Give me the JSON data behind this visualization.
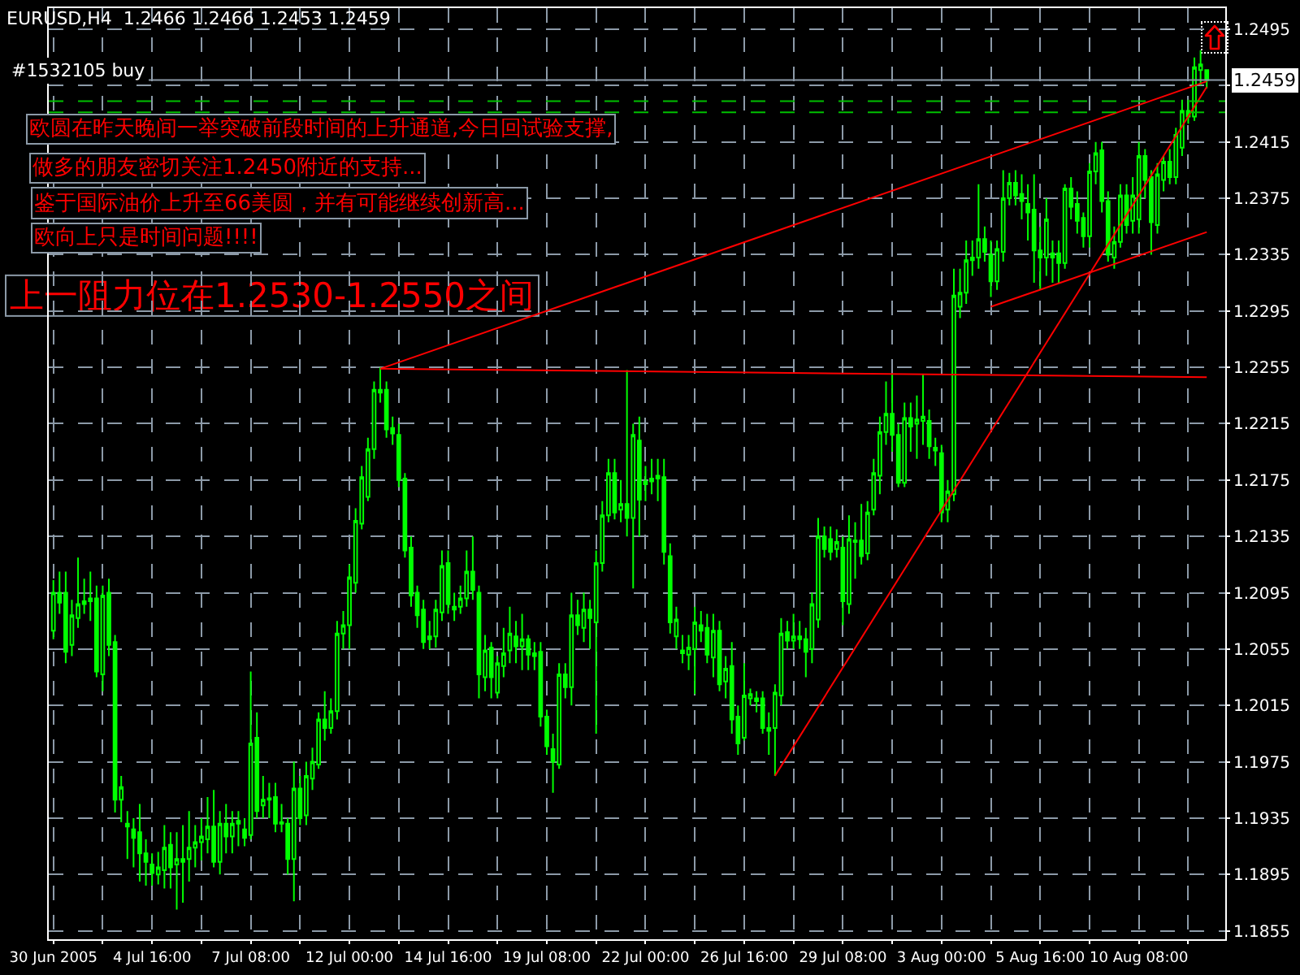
{
  "chart_data": {
    "type": "candlestick",
    "title": "EURUSD,H4  1.2466 1.2466 1.2453 1.2459",
    "color": "#00ff00",
    "categories": [
      "30 Jun 2005",
      null,
      null,
      null,
      null,
      null,
      null,
      null,
      null,
      null,
      null,
      null,
      null,
      null,
      null,
      null,
      "4 Jul 16:00",
      null,
      null,
      null,
      null,
      null,
      null,
      null,
      null,
      null,
      null,
      null,
      null,
      null,
      null,
      null,
      "7 Jul 08:00",
      null,
      null,
      null,
      null,
      null,
      null,
      null,
      null,
      null,
      null,
      null,
      null,
      null,
      null,
      null,
      "12 Jul 00:00",
      null,
      null,
      null,
      null,
      null,
      null,
      null,
      null,
      null,
      null,
      null,
      null,
      null,
      null,
      null,
      "14 Jul 16:00",
      null,
      null,
      null,
      null,
      null,
      null,
      null,
      null,
      null,
      null,
      null,
      null,
      null,
      null,
      null,
      "19 Jul 08:00",
      null,
      null,
      null,
      null,
      null,
      null,
      null,
      null,
      null,
      null,
      null,
      null,
      null,
      null,
      null,
      "22 Jul 00:00",
      null,
      null,
      null,
      null,
      null,
      null,
      null,
      null,
      null,
      null,
      null,
      null,
      null,
      null,
      null,
      "26 Jul 16:00",
      null,
      null,
      null,
      null,
      null,
      null,
      null,
      null,
      null,
      null,
      null,
      null,
      null,
      null,
      null,
      "29 Jul 08:00",
      null,
      null,
      null,
      null,
      null,
      null,
      null,
      null,
      null,
      null,
      null,
      null,
      null,
      null,
      null,
      "3 Aug 00:00",
      null,
      null,
      null,
      null,
      null,
      null,
      null,
      null,
      null,
      null,
      null,
      null,
      null,
      null,
      null,
      "5 Aug 16:00",
      null,
      null,
      null,
      null,
      null,
      null,
      null,
      null,
      null,
      null,
      null,
      null,
      null,
      null,
      null,
      "10 Aug 08:00",
      null,
      null,
      null,
      null,
      null,
      null,
      null,
      null,
      null,
      null,
      null
    ],
    "ohlc": [
      [
        1.2068,
        1.2104,
        1.2062,
        1.2095
      ],
      [
        1.2095,
        1.211,
        1.208,
        1.2088
      ],
      [
        1.2095,
        1.211,
        1.2045,
        1.2053
      ],
      [
        1.2058,
        1.209,
        1.205,
        1.2079
      ],
      [
        1.2077,
        1.212,
        1.207,
        1.2087
      ],
      [
        1.2087,
        1.2105,
        1.208,
        1.2089
      ],
      [
        1.2089,
        1.211,
        1.2075,
        1.2091
      ],
      [
        1.2091,
        1.21,
        1.2035,
        1.2039
      ],
      [
        1.2037,
        1.21,
        1.2025,
        1.2093
      ],
      [
        1.2095,
        1.2105,
        1.205,
        1.2058
      ],
      [
        1.206,
        1.2065,
        1.1939,
        1.1948
      ],
      [
        1.1948,
        1.1965,
        1.1932,
        1.1957
      ],
      [
        1.1931,
        1.194,
        1.1906,
        1.1929
      ],
      [
        1.1927,
        1.1935,
        1.19,
        1.1921
      ],
      [
        1.1925,
        1.1945,
        1.189,
        1.191
      ],
      [
        1.191,
        1.192,
        1.1887,
        1.1904
      ],
      [
        1.1902,
        1.191,
        1.1887,
        1.1896
      ],
      [
        1.1895,
        1.1911,
        1.1888,
        1.19
      ],
      [
        1.1898,
        1.193,
        1.1885,
        1.1914
      ],
      [
        1.1916,
        1.1925,
        1.1885,
        1.19
      ],
      [
        1.1902,
        1.1925,
        1.187,
        1.1906
      ],
      [
        1.1906,
        1.193,
        1.1875,
        1.1904
      ],
      [
        1.1906,
        1.194,
        1.189,
        1.1914
      ],
      [
        1.1914,
        1.193,
        1.19,
        1.1918
      ],
      [
        1.1918,
        1.1935,
        1.1905,
        1.1922
      ],
      [
        1.192,
        1.195,
        1.191,
        1.1929
      ],
      [
        1.1929,
        1.1955,
        1.19,
        1.1904
      ],
      [
        1.1904,
        1.194,
        1.1895,
        1.1931
      ],
      [
        1.1931,
        1.1945,
        1.191,
        1.1922
      ],
      [
        1.1922,
        1.194,
        1.191,
        1.1931
      ],
      [
        1.1931,
        1.194,
        1.1915,
        1.1933
      ],
      [
        1.1927,
        1.1935,
        1.1915,
        1.1921
      ],
      [
        1.1923,
        1.2039,
        1.192,
        1.1988
      ],
      [
        1.1992,
        1.201,
        1.1935,
        1.194
      ],
      [
        1.1944,
        1.1965,
        1.1935,
        1.1948
      ],
      [
        1.1948,
        1.196,
        1.1935,
        1.1949
      ],
      [
        1.195,
        1.196,
        1.1925,
        1.1931
      ],
      [
        1.1931,
        1.1945,
        1.1925,
        1.1932
      ],
      [
        1.1931,
        1.1935,
        1.1895,
        1.1906
      ],
      [
        1.1906,
        1.1975,
        1.1876,
        1.1956
      ],
      [
        1.1956,
        1.1965,
        1.193,
        1.1935
      ],
      [
        1.1937,
        1.1975,
        1.193,
        1.1965
      ],
      [
        1.1963,
        1.1985,
        1.1955,
        1.1975
      ],
      [
        1.1973,
        1.201,
        1.197,
        1.2005
      ],
      [
        1.2005,
        1.2025,
        1.199,
        1.1999
      ],
      [
        1.1999,
        1.202,
        1.1995,
        1.2011
      ],
      [
        1.2011,
        1.2075,
        1.2005,
        1.2066
      ],
      [
        1.2066,
        1.2082,
        1.2055,
        1.2072
      ],
      [
        1.2072,
        1.2115,
        1.2055,
        1.2106
      ],
      [
        1.2102,
        1.2155,
        1.2095,
        1.2146
      ],
      [
        1.2144,
        1.2185,
        1.214,
        1.2177
      ],
      [
        1.2163,
        1.2205,
        1.216,
        1.2197
      ],
      [
        1.2197,
        1.2245,
        1.219,
        1.2239
      ],
      [
        1.2239,
        1.2255,
        1.223,
        1.2237
      ],
      [
        1.2239,
        1.2245,
        1.2205,
        1.2211
      ],
      [
        1.2212,
        1.222,
        1.22,
        1.2208
      ],
      [
        1.2207,
        1.2215,
        1.217,
        1.2175
      ],
      [
        1.2176,
        1.218,
        1.212,
        1.2125
      ],
      [
        1.2127,
        1.2135,
        1.2085,
        1.2093
      ],
      [
        1.2095,
        1.21,
        1.207,
        1.2079
      ],
      [
        1.2083,
        1.209,
        1.2055,
        1.206
      ],
      [
        1.2064,
        1.2075,
        1.2055,
        1.2062
      ],
      [
        1.2064,
        1.209,
        1.2056,
        1.2083
      ],
      [
        1.2081,
        1.2125,
        1.2075,
        1.2114
      ],
      [
        1.2116,
        1.2125,
        1.208,
        1.2087
      ],
      [
        1.2085,
        1.2095,
        1.2075,
        1.2083
      ],
      [
        1.2085,
        1.21,
        1.208,
        1.2091
      ],
      [
        1.2091,
        1.2125,
        1.2085,
        1.211
      ],
      [
        1.211,
        1.2135,
        1.209,
        1.2097
      ],
      [
        1.2095,
        1.21,
        1.202,
        1.2037
      ],
      [
        1.2035,
        1.2065,
        1.2025,
        1.2054
      ],
      [
        1.2056,
        1.206,
        1.202,
        1.2035
      ],
      [
        1.2024,
        1.205,
        1.202,
        1.2045
      ],
      [
        1.2043,
        1.207,
        1.2035,
        1.2052
      ],
      [
        1.2054,
        1.2085,
        1.2045,
        1.2066
      ],
      [
        1.2064,
        1.2075,
        1.2045,
        1.2057
      ],
      [
        1.2057,
        1.208,
        1.204,
        1.2062
      ],
      [
        1.2062,
        1.2065,
        1.204,
        1.2051
      ],
      [
        1.2052,
        1.206,
        1.204,
        1.205
      ],
      [
        1.2053,
        1.206,
        1.2,
        1.2007
      ],
      [
        1.2007,
        1.2012,
        1.198,
        1.1986
      ],
      [
        1.1984,
        1.1995,
        1.1953,
        1.1975
      ],
      [
        1.1973,
        1.2045,
        1.197,
        1.2037
      ],
      [
        1.2037,
        1.2045,
        1.202,
        1.2028
      ],
      [
        1.2028,
        1.2095,
        1.2015,
        1.2079
      ],
      [
        1.2079,
        1.209,
        1.2065,
        1.2072
      ],
      [
        1.207,
        1.2095,
        1.206,
        1.2083
      ],
      [
        1.2083,
        1.209,
        1.2055,
        1.2077
      ],
      [
        1.2074,
        1.2125,
        1.1995,
        1.2116
      ],
      [
        1.2116,
        1.216,
        1.211,
        1.215
      ],
      [
        1.215,
        1.219,
        1.2145,
        1.218
      ],
      [
        1.218,
        1.219,
        1.2147,
        1.2152
      ],
      [
        1.2154,
        1.2175,
        1.2145,
        1.2158
      ],
      [
        1.2158,
        1.2253,
        1.2135,
        1.2148
      ],
      [
        1.2148,
        1.2215,
        1.2098,
        1.2207
      ],
      [
        1.2203,
        1.222,
        1.2135,
        1.2161
      ],
      [
        1.2172,
        1.2185,
        1.216,
        1.2174
      ],
      [
        1.2174,
        1.219,
        1.2165,
        1.2176
      ],
      [
        1.2176,
        1.219,
        1.216,
        1.2178
      ],
      [
        1.2177,
        1.219,
        1.2115,
        1.2124
      ],
      [
        1.2121,
        1.213,
        1.2066,
        1.2074
      ],
      [
        1.2064,
        1.2085,
        1.2055,
        1.2076
      ],
      [
        1.2052,
        1.2065,
        1.2045,
        1.2054
      ],
      [
        1.2051,
        1.2065,
        1.204,
        1.2056
      ],
      [
        1.2055,
        1.2085,
        1.2023,
        1.2074
      ],
      [
        1.2072,
        1.2082,
        1.206,
        1.2068
      ],
      [
        1.207,
        1.208,
        1.2045,
        1.2051
      ],
      [
        1.2049,
        1.208,
        1.2035,
        1.2068
      ],
      [
        1.2068,
        1.2075,
        1.2025,
        1.203
      ],
      [
        1.2032,
        1.205,
        1.202,
        1.2041
      ],
      [
        1.2043,
        1.206,
        1.1995,
        1.2005
      ],
      [
        1.2007,
        1.2015,
        1.198,
        1.1988
      ],
      [
        1.1992,
        1.2045,
        1.199,
        1.2022
      ],
      [
        1.202,
        1.2027,
        1.2015,
        1.2023
      ],
      [
        1.202,
        1.2025,
        1.201,
        1.2018
      ],
      [
        1.202,
        1.2025,
        1.1995,
        1.1999
      ],
      [
        1.1999,
        1.201,
        1.198,
        1.1997
      ],
      [
        1.1999,
        1.203,
        1.1965,
        1.2024
      ],
      [
        1.2022,
        1.2077,
        1.2015,
        1.2066
      ],
      [
        1.2067,
        1.2075,
        1.2055,
        1.2061
      ],
      [
        1.2061,
        1.208,
        1.2055,
        1.2064
      ],
      [
        1.2064,
        1.2075,
        1.2055,
        1.2062
      ],
      [
        1.2062,
        1.207,
        1.2035,
        1.2053
      ],
      [
        1.2055,
        1.2095,
        1.2045,
        1.2087
      ],
      [
        1.2076,
        1.2148,
        1.207,
        1.2135
      ],
      [
        1.2135,
        1.2142,
        1.212,
        1.2126
      ],
      [
        1.2133,
        1.2142,
        1.2118,
        1.2124
      ],
      [
        1.2126,
        1.214,
        1.212,
        1.2131
      ],
      [
        1.2127,
        1.2135,
        1.2072,
        1.2089
      ],
      [
        1.2087,
        1.215,
        1.208,
        1.2133
      ],
      [
        1.2132,
        1.2145,
        1.2105,
        1.2131
      ],
      [
        1.2132,
        1.2158,
        1.2115,
        1.2121
      ],
      [
        1.2123,
        1.216,
        1.2118,
        1.2152
      ],
      [
        1.2154,
        1.219,
        1.215,
        1.218
      ],
      [
        1.2178,
        1.222,
        1.2165,
        1.2209
      ],
      [
        1.2209,
        1.2245,
        1.22,
        1.2222
      ],
      [
        1.2222,
        1.225,
        1.2195,
        1.2207
      ],
      [
        1.2207,
        1.2215,
        1.217,
        1.2173
      ],
      [
        1.2173,
        1.223,
        1.217,
        1.2219
      ],
      [
        1.2219,
        1.223,
        1.2195,
        1.2213
      ],
      [
        1.2215,
        1.2235,
        1.219,
        1.2218
      ],
      [
        1.2217,
        1.225,
        1.22,
        1.222
      ],
      [
        1.2217,
        1.2225,
        1.219,
        1.2199
      ],
      [
        1.2198,
        1.2205,
        1.2185,
        1.2196
      ],
      [
        1.2194,
        1.22,
        1.2145,
        1.2152
      ],
      [
        1.2154,
        1.2175,
        1.2145,
        1.2167
      ],
      [
        1.2165,
        1.2325,
        1.216,
        1.2306
      ],
      [
        1.2298,
        1.2325,
        1.229,
        1.2308
      ],
      [
        1.2308,
        1.2345,
        1.23,
        1.2331
      ],
      [
        1.2331,
        1.2345,
        1.232,
        1.2333
      ],
      [
        1.2333,
        1.2385,
        1.2325,
        1.2346
      ],
      [
        1.2346,
        1.2355,
        1.233,
        1.2337
      ],
      [
        1.2335,
        1.2345,
        1.2305,
        1.2316
      ],
      [
        1.2316,
        1.2345,
        1.231,
        1.2339
      ],
      [
        1.2337,
        1.2395,
        1.233,
        1.2375
      ],
      [
        1.2375,
        1.2393,
        1.237,
        1.2386
      ],
      [
        1.2386,
        1.2395,
        1.237,
        1.2377
      ],
      [
        1.2378,
        1.2392,
        1.236,
        1.2373
      ],
      [
        1.2371,
        1.2385,
        1.2345,
        1.2365
      ],
      [
        1.2367,
        1.2392,
        1.2315,
        1.2338
      ],
      [
        1.2338,
        1.2355,
        1.231,
        1.2333
      ],
      [
        1.2333,
        1.2375,
        1.232,
        1.236
      ],
      [
        1.2336,
        1.2345,
        1.2315,
        1.2333
      ],
      [
        1.2336,
        1.2345,
        1.2315,
        1.2329
      ],
      [
        1.2329,
        1.2385,
        1.2325,
        1.2382
      ],
      [
        1.2382,
        1.239,
        1.236,
        1.2369
      ],
      [
        1.2371,
        1.238,
        1.235,
        1.2359
      ],
      [
        1.2361,
        1.2365,
        1.234,
        1.2348
      ],
      [
        1.2348,
        1.24,
        1.234,
        1.2394
      ],
      [
        1.2394,
        1.2415,
        1.2385,
        1.2407
      ],
      [
        1.2409,
        1.2415,
        1.2365,
        1.2373
      ],
      [
        1.2373,
        1.238,
        1.233,
        1.2335
      ],
      [
        1.2333,
        1.2355,
        1.2325,
        1.2344
      ],
      [
        1.2344,
        1.2385,
        1.234,
        1.2377
      ],
      [
        1.2377,
        1.2385,
        1.235,
        1.2356
      ],
      [
        1.2359,
        1.239,
        1.235,
        1.2377
      ],
      [
        1.236,
        1.2415,
        1.235,
        1.2405
      ],
      [
        1.2405,
        1.241,
        1.2375,
        1.2388
      ],
      [
        1.239,
        1.2395,
        1.2335,
        1.2358
      ],
      [
        1.2356,
        1.24,
        1.235,
        1.2392
      ],
      [
        1.2388,
        1.2405,
        1.238,
        1.2401
      ],
      [
        1.2401,
        1.241,
        1.2385,
        1.239
      ],
      [
        1.239,
        1.2425,
        1.2385,
        1.242
      ],
      [
        1.2411,
        1.2445,
        1.2405,
        1.2437
      ],
      [
        1.2437,
        1.2445,
        1.2428,
        1.2433
      ],
      [
        1.2433,
        1.2475,
        1.243,
        1.2468
      ],
      [
        1.2466,
        1.248,
        1.2455,
        1.247
      ],
      [
        1.2466,
        1.2466,
        1.2453,
        1.2459
      ]
    ],
    "series": [
      {
        "type": "line",
        "color": "#ff0000",
        "values": [
          null,
          null,
          null,
          null,
          null,
          null,
          null,
          null,
          null,
          null,
          null,
          null,
          null,
          null,
          null,
          null,
          null,
          null,
          null,
          null,
          null,
          null,
          null,
          null,
          null,
          null,
          null,
          null,
          null,
          null,
          null,
          null,
          null,
          null,
          null,
          null,
          null,
          null,
          null,
          null,
          null,
          null,
          null,
          null,
          null,
          null,
          null,
          null,
          null,
          null,
          null,
          null,
          null,
          1.2254,
          null,
          null,
          null,
          null,
          null,
          null,
          null,
          null,
          null,
          null,
          null,
          null,
          null,
          null,
          null,
          null,
          null,
          null,
          null,
          null,
          null,
          null,
          null,
          null,
          null,
          null,
          null,
          null,
          null,
          null,
          null,
          null,
          null,
          null,
          null,
          null,
          null,
          null,
          null,
          null,
          null,
          null,
          null,
          null,
          null,
          null,
          null,
          null,
          null,
          null,
          null,
          null,
          null,
          null,
          null,
          null,
          null,
          null,
          null,
          null,
          null,
          null,
          null,
          null,
          null,
          null,
          null,
          null,
          null,
          null,
          null,
          null,
          null,
          null,
          null,
          null,
          null,
          null,
          null,
          null,
          null,
          null,
          null,
          null,
          null,
          null,
          null,
          null,
          null,
          null,
          null,
          null,
          null,
          null,
          null,
          null,
          null,
          null,
          null,
          null,
          null,
          null,
          null,
          null,
          null,
          null,
          null,
          null,
          null,
          null,
          null,
          null,
          null,
          null,
          null,
          null,
          null,
          null,
          null,
          null,
          null,
          null,
          null,
          null,
          null,
          null,
          null,
          null,
          null,
          null,
          null,
          null,
          null,
          1.2458
        ]
      },
      {
        "type": "line",
        "color": "#ff0000",
        "values": [
          null,
          null,
          null,
          null,
          null,
          null,
          null,
          null,
          null,
          null,
          null,
          null,
          null,
          null,
          null,
          null,
          null,
          null,
          null,
          null,
          null,
          null,
          null,
          null,
          null,
          null,
          null,
          null,
          null,
          null,
          null,
          null,
          null,
          null,
          null,
          null,
          null,
          null,
          null,
          null,
          null,
          null,
          null,
          null,
          null,
          null,
          null,
          null,
          null,
          null,
          null,
          null,
          null,
          null,
          null,
          null,
          null,
          null,
          null,
          null,
          null,
          null,
          null,
          null,
          null,
          null,
          null,
          null,
          null,
          null,
          null,
          null,
          null,
          null,
          null,
          null,
          null,
          null,
          null,
          null,
          null,
          null,
          null,
          null,
          null,
          null,
          null,
          null,
          null,
          null,
          null,
          null,
          null,
          null,
          null,
          null,
          null,
          null,
          null,
          null,
          null,
          null,
          null,
          null,
          null,
          null,
          null,
          null,
          null,
          null,
          null,
          null,
          null,
          null,
          null,
          null,
          null,
          null,
          null,
          null,
          null,
          null,
          null,
          null,
          null,
          null,
          null,
          null,
          null,
          null,
          null,
          null,
          null,
          null,
          null,
          null,
          null,
          null,
          null,
          null,
          null,
          null,
          null,
          null,
          null,
          null,
          null,
          null,
          null,
          null,
          null,
          null,
          1.2298,
          null,
          null,
          null,
          null,
          null,
          null,
          null,
          null,
          null,
          null,
          null,
          null,
          null,
          null,
          null,
          null,
          null,
          null,
          null,
          null,
          null,
          null,
          null,
          null,
          null,
          null,
          null,
          null,
          null,
          null,
          null,
          null,
          null,
          null,
          1.2351
        ]
      },
      {
        "type": "line",
        "color": "#ff0000",
        "values": [
          null,
          null,
          null,
          null,
          null,
          null,
          null,
          null,
          null,
          null,
          null,
          null,
          null,
          null,
          null,
          null,
          null,
          null,
          null,
          null,
          null,
          null,
          null,
          null,
          null,
          null,
          null,
          null,
          null,
          null,
          null,
          null,
          null,
          null,
          null,
          null,
          null,
          null,
          null,
          null,
          null,
          null,
          null,
          null,
          null,
          null,
          null,
          null,
          null,
          null,
          null,
          null,
          null,
          null,
          null,
          null,
          null,
          null,
          null,
          null,
          null,
          null,
          null,
          null,
          null,
          null,
          null,
          null,
          null,
          null,
          null,
          null,
          null,
          null,
          null,
          null,
          null,
          null,
          null,
          null,
          null,
          null,
          null,
          null,
          null,
          null,
          null,
          null,
          null,
          null,
          null,
          null,
          null,
          null,
          null,
          null,
          null,
          null,
          null,
          null,
          null,
          null,
          null,
          null,
          null,
          null,
          null,
          null,
          null,
          null,
          null,
          null,
          null,
          null,
          null,
          null,
          null,
          1.1965,
          null,
          null,
          null,
          null,
          null,
          null,
          null,
          null,
          null,
          null,
          null,
          null,
          null,
          null,
          null,
          null,
          null,
          null,
          null,
          null,
          null,
          null,
          null,
          null,
          null,
          null,
          null,
          null,
          null,
          null,
          null,
          null,
          null,
          null,
          null,
          null,
          null,
          null,
          null,
          null,
          null,
          null,
          null,
          null,
          null,
          null,
          null,
          null,
          null,
          null,
          null,
          null,
          null,
          null,
          null,
          null,
          null,
          null,
          null,
          null,
          null,
          null,
          null,
          null,
          null,
          null,
          null,
          null,
          null,
          1.2454
        ]
      },
      {
        "type": "line",
        "color": "#ff0000",
        "values": [
          null,
          null,
          null,
          null,
          null,
          null,
          null,
          null,
          null,
          null,
          null,
          null,
          null,
          null,
          null,
          null,
          null,
          null,
          null,
          null,
          null,
          null,
          null,
          null,
          null,
          null,
          null,
          null,
          null,
          null,
          null,
          null,
          null,
          null,
          null,
          null,
          null,
          null,
          null,
          null,
          null,
          null,
          null,
          null,
          null,
          null,
          null,
          null,
          null,
          null,
          null,
          null,
          null,
          1.2254,
          null,
          null,
          null,
          null,
          null,
          null,
          null,
          null,
          null,
          null,
          null,
          null,
          null,
          null,
          null,
          null,
          null,
          null,
          null,
          null,
          null,
          null,
          null,
          null,
          null,
          null,
          null,
          null,
          null,
          null,
          null,
          null,
          null,
          null,
          null,
          null,
          null,
          null,
          null,
          null,
          null,
          null,
          null,
          null,
          null,
          null,
          null,
          null,
          null,
          null,
          null,
          null,
          null,
          null,
          null,
          null,
          null,
          null,
          null,
          null,
          null,
          null,
          null,
          null,
          null,
          null,
          null,
          null,
          null,
          null,
          null,
          null,
          null,
          null,
          null,
          null,
          null,
          null,
          null,
          null,
          null,
          null,
          null,
          null,
          null,
          null,
          null,
          null,
          null,
          null,
          null,
          null,
          null,
          null,
          null,
          null,
          null,
          null,
          null,
          null,
          null,
          null,
          null,
          null,
          null,
          null,
          null,
          null,
          null,
          null,
          null,
          null,
          null,
          null,
          null,
          null,
          null,
          null,
          null,
          null,
          null,
          null,
          null,
          null,
          null,
          null,
          null,
          null,
          null,
          null,
          null,
          null,
          null,
          1.2248
        ]
      }
    ],
    "ref_lines": [
      {
        "axis": "y",
        "value": 1.2459,
        "label": "1.2459",
        "color": "#8c9aa8"
      },
      {
        "axis": "y",
        "value": 1.2444,
        "label": "#1532105 buy",
        "color": "#00c000",
        "line_style": "dashed"
      },
      {
        "axis": "y",
        "value": 1.2436,
        "color": "#00c000",
        "line_style": "dashed"
      }
    ],
    "annotations": [
      "欧圆在昨天晚间一举突破前段时间的上升通道,今日回试验支撑,",
      "做多的朋友密切关注1.2450附近的支持...",
      "鉴于国际油价上升至66美圆，并有可能继续创新高...",
      "欧向上只是时间问题!!!!",
      "上一阻力位在1.2530-1.2550之间"
    ],
    "ylim": [
      1.1849,
      1.251
    ],
    "yticks": [
      1.1855,
      1.1895,
      1.1935,
      1.1975,
      1.2015,
      1.2055,
      1.2095,
      1.2135,
      1.2175,
      1.2215,
      1.2255,
      1.2295,
      1.2335,
      1.2375,
      1.2415,
      {
        "value": 1.2455,
        "label": null
      },
      1.2495
    ],
    "grid": true
  }
}
